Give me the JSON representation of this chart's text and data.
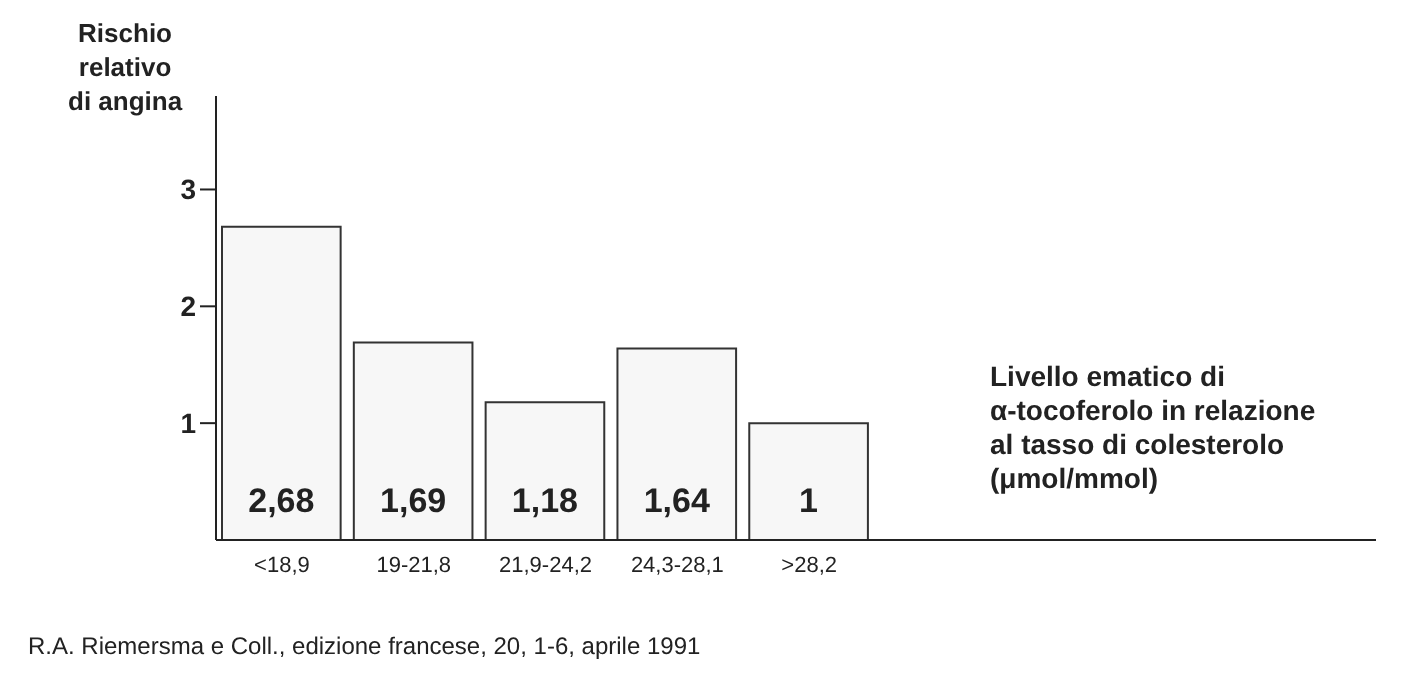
{
  "chart_data": {
    "type": "bar",
    "ylabel": "Rischio\nrelativo\ndi angina",
    "xlabel": "Livello ematico di\nα-tocoferolo in relazione\nal tasso di colesterolo\n(μmol/mmol)",
    "categories": [
      "<18,9",
      "19-21,8",
      "21,9-24,2",
      "24,3-28,1",
      ">28,2"
    ],
    "values": [
      2.68,
      1.69,
      1.18,
      1.64,
      1
    ],
    "value_labels": [
      "2,68",
      "1,69",
      "1,18",
      "1,64",
      "1"
    ],
    "color": "#f7f7f7",
    "ylim": [
      0,
      3.8
    ],
    "yticks": [
      1,
      2,
      3
    ],
    "grid": false,
    "legend": false,
    "annotations": [
      "R.A. Riemersma e Coll., edizione francese, 20, 1-6, aprile 1991"
    ]
  }
}
